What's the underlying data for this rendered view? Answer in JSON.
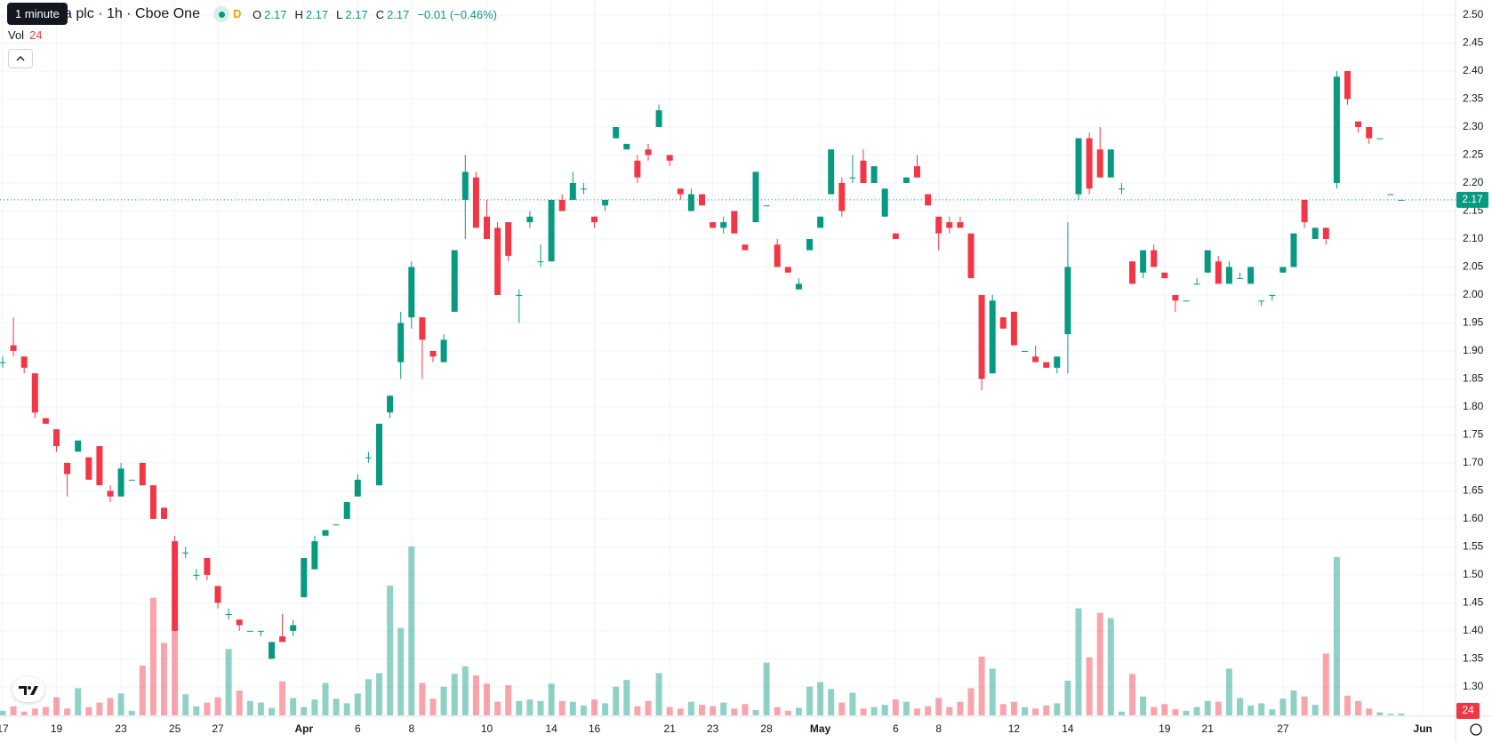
{
  "chart_data": {
    "type": "candlestick",
    "tooltip": "1 minute",
    "title": "a plc · 1h · Cboe One",
    "interval_badge": "D",
    "legend": {
      "o_label": "O",
      "open": 2.17,
      "h_label": "H",
      "high": 2.17,
      "l_label": "L",
      "low": 2.17,
      "c_label": "C",
      "close": 2.17,
      "change": "−0.01 (−0.46%)"
    },
    "volume_label": "Vol",
    "categories": [
      "17",
      null,
      null,
      null,
      null,
      "19",
      null,
      null,
      null,
      null,
      null,
      "23",
      null,
      null,
      null,
      null,
      "25",
      null,
      null,
      null,
      "27",
      null,
      null,
      null,
      null,
      null,
      null,
      null,
      "Apr",
      null,
      null,
      null,
      null,
      "6",
      null,
      null,
      null,
      null,
      "8",
      null,
      null,
      null,
      null,
      null,
      null,
      "10",
      null,
      null,
      null,
      null,
      null,
      "14",
      null,
      null,
      null,
      "16",
      null,
      null,
      null,
      null,
      null,
      null,
      "21",
      null,
      null,
      null,
      "23",
      null,
      null,
      null,
      null,
      "28",
      null,
      null,
      null,
      null,
      "May",
      null,
      null,
      null,
      null,
      null,
      null,
      "6",
      null,
      null,
      null,
      "8",
      null,
      null,
      null,
      null,
      null,
      null,
      "12",
      null,
      null,
      null,
      null,
      "14",
      null,
      null,
      null,
      null,
      null,
      null,
      null,
      null,
      "19",
      null,
      null,
      null,
      "21",
      null,
      null,
      null,
      null,
      null,
      null,
      "27",
      null,
      null,
      null,
      null,
      null,
      null,
      null,
      null,
      null,
      null,
      null,
      null,
      "Jun",
      null
    ],
    "open": [
      1.88,
      1.91,
      1.89,
      1.86,
      1.78,
      1.76,
      1.7,
      1.72,
      1.71,
      1.73,
      1.65,
      1.64,
      1.67,
      1.7,
      1.66,
      1.62,
      1.56,
      1.54,
      1.5,
      1.53,
      1.48,
      1.43,
      1.42,
      1.4,
      1.4,
      1.35,
      1.39,
      1.4,
      1.46,
      1.51,
      1.57,
      1.59,
      1.6,
      1.64,
      1.71,
      1.66,
      1.79,
      1.88,
      1.96,
      1.96,
      1.9,
      1.88,
      1.97,
      2.17,
      2.21,
      2.14,
      2.12,
      2.13,
      2.0,
      2.13,
      2.06,
      2.06,
      2.17,
      2.17,
      2.19,
      2.14,
      2.16,
      2.28,
      2.26,
      2.24,
      2.26,
      2.3,
      2.25,
      2.19,
      2.15,
      2.18,
      2.13,
      2.12,
      2.15,
      2.09,
      2.13,
      2.16,
      2.09,
      2.05,
      2.01,
      2.08,
      2.12,
      2.18,
      2.2,
      2.21,
      2.24,
      2.2,
      2.14,
      2.11,
      2.2,
      2.23,
      2.18,
      2.14,
      2.13,
      2.13,
      2.11,
      2.0,
      1.86,
      1.96,
      1.97,
      1.9,
      1.89,
      1.88,
      1.87,
      1.93,
      2.18,
      2.28,
      2.26,
      2.21,
      2.19,
      2.06,
      2.04,
      2.08,
      2.04,
      2.0,
      1.99,
      2.02,
      2.04,
      2.06,
      2.02,
      2.03,
      2.02,
      1.99,
      2.0,
      2.04,
      2.05,
      2.17,
      2.1,
      2.12,
      2.2,
      2.4,
      2.31,
      2.3,
      2.28,
      2.18,
      2.17,
      null,
      null,
      null
    ],
    "high": [
      1.89,
      1.96,
      1.89,
      1.86,
      1.78,
      1.76,
      1.7,
      1.74,
      1.71,
      1.73,
      1.66,
      1.7,
      1.67,
      1.7,
      1.66,
      1.62,
      1.57,
      1.55,
      1.51,
      1.53,
      1.48,
      1.44,
      1.42,
      1.4,
      1.4,
      1.38,
      1.43,
      1.42,
      1.53,
      1.57,
      1.58,
      1.59,
      1.63,
      1.68,
      1.72,
      1.77,
      1.82,
      1.97,
      2.06,
      1.96,
      1.9,
      1.93,
      2.08,
      2.25,
      2.22,
      2.17,
      2.13,
      2.13,
      2.01,
      2.15,
      2.09,
      2.17,
      2.18,
      2.22,
      2.2,
      2.14,
      2.17,
      2.3,
      2.27,
      2.25,
      2.27,
      2.34,
      2.25,
      2.19,
      2.19,
      2.18,
      2.13,
      2.14,
      2.15,
      2.09,
      2.22,
      2.16,
      2.1,
      2.05,
      2.03,
      2.1,
      2.14,
      2.26,
      2.21,
      2.25,
      2.26,
      2.23,
      2.19,
      2.11,
      2.21,
      2.25,
      2.18,
      2.14,
      2.14,
      2.14,
      2.11,
      2.0,
      2.0,
      1.96,
      1.97,
      1.9,
      1.91,
      1.88,
      1.89,
      2.13,
      2.28,
      2.29,
      2.3,
      2.26,
      2.2,
      2.06,
      2.08,
      2.09,
      2.04,
      2.0,
      1.99,
      2.03,
      2.08,
      2.07,
      2.06,
      2.04,
      2.05,
      1.99,
      2.0,
      2.05,
      2.11,
      2.17,
      2.12,
      2.12,
      2.4,
      2.4,
      2.31,
      2.3,
      2.28,
      2.18,
      2.17,
      null,
      null,
      null
    ],
    "low": [
      1.87,
      1.89,
      1.86,
      1.78,
      1.77,
      1.72,
      1.64,
      1.72,
      1.67,
      1.66,
      1.63,
      1.64,
      1.67,
      1.66,
      1.6,
      1.6,
      1.4,
      1.53,
      1.49,
      1.49,
      1.44,
      1.42,
      1.4,
      1.4,
      1.39,
      1.35,
      1.38,
      1.39,
      1.46,
      1.51,
      1.57,
      1.59,
      1.6,
      1.64,
      1.7,
      1.66,
      1.78,
      1.85,
      1.94,
      1.85,
      1.88,
      1.88,
      1.97,
      2.1,
      2.12,
      2.1,
      2.0,
      2.06,
      1.95,
      2.12,
      2.05,
      2.06,
      2.15,
      2.17,
      2.18,
      2.12,
      2.15,
      2.28,
      2.26,
      2.2,
      2.24,
      2.3,
      2.23,
      2.17,
      2.15,
      2.16,
      2.12,
      2.11,
      2.11,
      2.08,
      2.13,
      2.16,
      2.05,
      2.04,
      2.01,
      2.08,
      2.12,
      2.18,
      2.14,
      2.2,
      2.2,
      2.2,
      2.14,
      2.1,
      2.2,
      2.21,
      2.16,
      2.08,
      2.11,
      2.12,
      2.03,
      1.83,
      1.86,
      1.94,
      1.91,
      1.9,
      1.88,
      1.87,
      1.86,
      1.86,
      2.17,
      2.18,
      2.21,
      2.21,
      2.18,
      2.02,
      2.03,
      2.05,
      2.03,
      1.97,
      1.99,
      2.02,
      2.04,
      2.02,
      2.02,
      2.03,
      2.02,
      1.98,
      1.99,
      2.04,
      2.05,
      2.12,
      2.1,
      2.09,
      2.19,
      2.34,
      2.29,
      2.27,
      2.28,
      2.18,
      2.17,
      null,
      null,
      null
    ],
    "close": [
      1.88,
      1.9,
      1.87,
      1.79,
      1.77,
      1.73,
      1.68,
      1.74,
      1.67,
      1.66,
      1.64,
      1.69,
      1.67,
      1.66,
      1.6,
      1.6,
      1.4,
      1.54,
      1.5,
      1.5,
      1.45,
      1.43,
      1.41,
      1.4,
      1.4,
      1.38,
      1.38,
      1.41,
      1.53,
      1.56,
      1.58,
      1.59,
      1.63,
      1.67,
      1.71,
      1.77,
      1.82,
      1.95,
      2.05,
      1.92,
      1.89,
      1.92,
      2.08,
      2.22,
      2.12,
      2.1,
      2.0,
      2.07,
      2.0,
      2.14,
      2.06,
      2.17,
      2.15,
      2.2,
      2.19,
      2.13,
      2.17,
      2.3,
      2.27,
      2.21,
      2.25,
      2.33,
      2.24,
      2.18,
      2.18,
      2.16,
      2.12,
      2.13,
      2.11,
      2.08,
      2.22,
      2.16,
      2.05,
      2.04,
      2.02,
      2.1,
      2.14,
      2.26,
      2.15,
      2.21,
      2.2,
      2.23,
      2.19,
      2.1,
      2.21,
      2.21,
      2.16,
      2.11,
      2.12,
      2.12,
      2.03,
      1.85,
      1.99,
      1.94,
      1.91,
      1.9,
      1.88,
      1.87,
      1.89,
      2.05,
      2.28,
      2.19,
      2.21,
      2.26,
      2.19,
      2.02,
      2.08,
      2.05,
      2.03,
      1.99,
      1.99,
      2.02,
      2.08,
      2.02,
      2.05,
      2.03,
      2.05,
      1.99,
      2.0,
      2.05,
      2.11,
      2.13,
      2.12,
      2.1,
      2.39,
      2.35,
      2.3,
      2.28,
      2.28,
      2.18,
      2.17,
      null,
      null,
      null
    ],
    "volume": [
      60,
      120,
      50,
      90,
      110,
      240,
      90,
      360,
      110,
      170,
      230,
      290,
      60,
      660,
      1560,
      960,
      1200,
      280,
      120,
      170,
      240,
      880,
      330,
      190,
      170,
      100,
      450,
      230,
      110,
      210,
      430,
      220,
      160,
      290,
      480,
      560,
      1720,
      1160,
      2240,
      430,
      220,
      380,
      550,
      650,
      530,
      420,
      180,
      400,
      190,
      210,
      190,
      420,
      190,
      180,
      130,
      210,
      160,
      380,
      470,
      120,
      190,
      560,
      110,
      90,
      180,
      140,
      120,
      170,
      90,
      150,
      70,
      700,
      110,
      60,
      100,
      380,
      440,
      350,
      170,
      300,
      90,
      110,
      140,
      210,
      180,
      90,
      120,
      230,
      110,
      180,
      360,
      780,
      620,
      150,
      180,
      110,
      90,
      130,
      160,
      460,
      1420,
      770,
      1360,
      1290,
      50,
      550,
      250,
      110,
      150,
      80,
      60,
      110,
      190,
      180,
      620,
      230,
      130,
      160,
      80,
      220,
      330,
      250,
      140,
      820,
      2100,
      260,
      190,
      90,
      40,
      20,
      24,
      null,
      null,
      null
    ],
    "up_color": "#089981",
    "down_color": "#f23645",
    "ylim": [
      1.249,
      2.527
    ],
    "yticks": [
      {
        "value": 1.3,
        "label": "1.30"
      },
      1.35,
      {
        "value": 1.4,
        "label": "1.40"
      },
      1.45,
      {
        "value": 1.5,
        "label": "1.50"
      },
      1.55,
      {
        "value": 1.6,
        "label": "1.60"
      },
      1.65,
      {
        "value": 1.7,
        "label": "1.70"
      },
      1.75,
      {
        "value": 1.8,
        "label": "1.80"
      },
      1.85,
      {
        "value": 1.9,
        "label": "1.90"
      },
      1.95,
      {
        "value": 2.0,
        "label": "2.00"
      },
      2.05,
      {
        "value": 2.1,
        "label": "2.10"
      },
      2.15,
      {
        "value": 2.2,
        "label": "2.20"
      },
      2.25,
      {
        "value": 2.3,
        "label": "2.30"
      },
      2.35,
      {
        "value": 2.4,
        "label": "2.40"
      },
      2.45,
      {
        "value": 2.5,
        "label": "2.50"
      }
    ],
    "last_price": 2.17,
    "grid": true
  }
}
